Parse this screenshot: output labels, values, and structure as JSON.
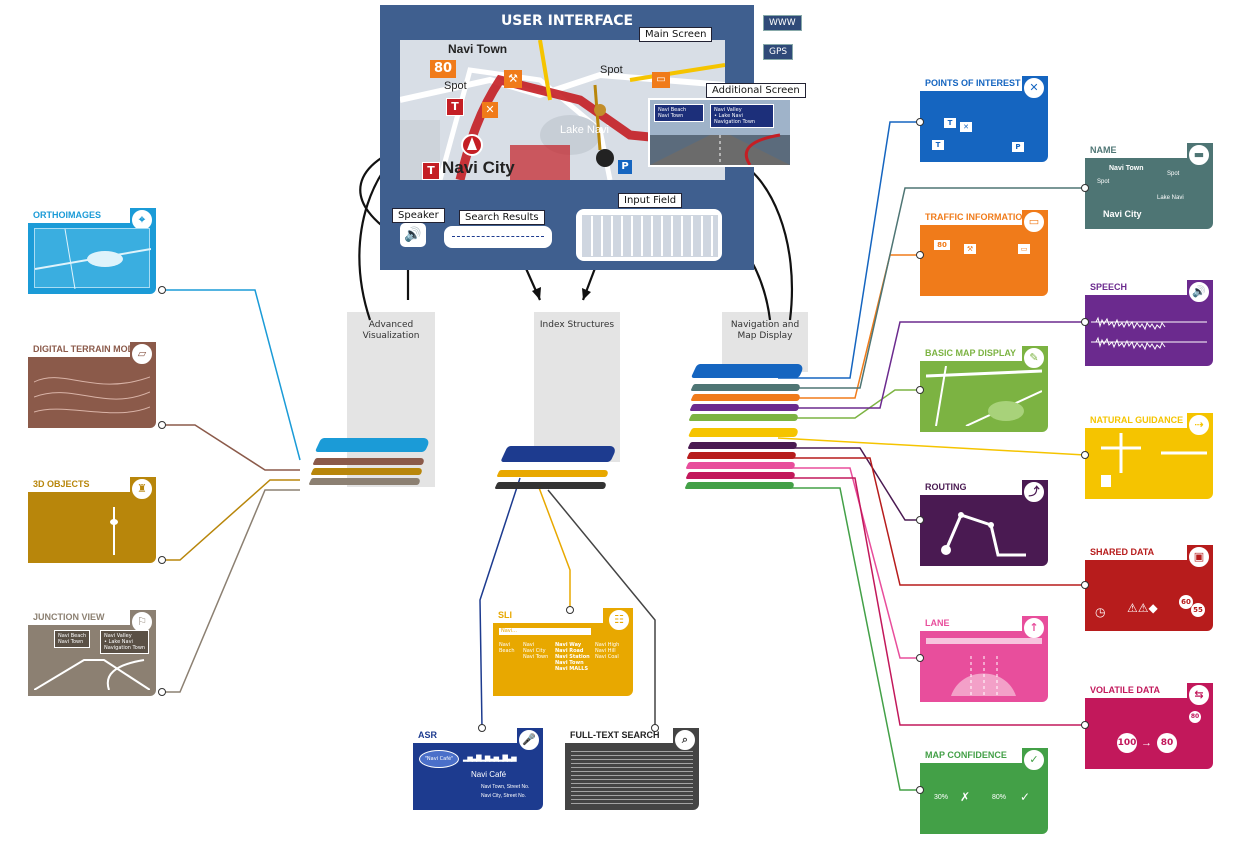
{
  "ui": {
    "title": "USER INTERFACE",
    "www": "WWW",
    "gps": "GPS",
    "main_screen": "Main Screen",
    "additional_screen": "Additional Screen",
    "speaker": "Speaker",
    "search_results": "Search Results",
    "input_field": "Input Field",
    "map": {
      "navi_town": "Navi Town",
      "speed_limit": "80",
      "spot_1": "Spot",
      "spot_2": "Spot",
      "lake": "Lake Navi",
      "city": "Navi City",
      "t_sign": "T",
      "t_sign_2": "T",
      "p_sign": "P"
    },
    "junction_signs": {
      "left_1": "Navi Beach",
      "left_2": "Navi Town",
      "right_1": "Navi Valley",
      "right_2": "• Lake Navi",
      "right_3": "Navigation Town"
    }
  },
  "columns": {
    "advanced": "Advanced Visualization",
    "index": "Index Structures",
    "navigation": "Navigation and Map Display"
  },
  "left_cards": [
    {
      "title": "ORTHOIMAGES",
      "color": "#1b9bd7",
      "icon": "satellite-icon"
    },
    {
      "title": "DIGITAL TERRAIN MODEL",
      "color": "#8b5a4a",
      "icon": "terrain-icon"
    },
    {
      "title": "3D OBJECTS",
      "color": "#b8860b",
      "icon": "tower-icon"
    },
    {
      "title": "JUNCTION VIEW",
      "color": "#8c8072",
      "icon": "junction-icon"
    }
  ],
  "junction_card": {
    "left_1": "Navi Beach",
    "left_2": "Navi Town",
    "right_1": "Navi Valley",
    "right_2": "• Lake Navi",
    "right_3": "Navigation Town"
  },
  "right_cards_a": [
    {
      "title": "POINTS OF INTEREST",
      "color": "#1565c0",
      "icon": "fork-knife-icon"
    },
    {
      "title": "TRAFFIC INFORMATION",
      "color": "#f07b1a",
      "icon": "car-icon"
    },
    {
      "title": "BASIC MAP DISPLAY",
      "color": "#7cb342",
      "icon": "map-icon"
    },
    {
      "title": "ROUTING",
      "color": "#4a1a52",
      "icon": "route-icon"
    },
    {
      "title": "LANE",
      "color": "#e84e9c",
      "icon": "lane-icon"
    },
    {
      "title": "MAP CONFIDENCE",
      "color": "#43a047",
      "icon": "check-icon"
    }
  ],
  "right_cards_b": [
    {
      "title": "NAME",
      "color": "#4e7574",
      "icon": "name-sign-icon"
    },
    {
      "title": "SPEECH",
      "color": "#6b2a8e",
      "icon": "speech-icon"
    },
    {
      "title": "NATURAL GUIDANCE",
      "color": "#f5c400",
      "icon": "guidance-icon"
    },
    {
      "title": "SHARED DATA",
      "color": "#b71c1c",
      "icon": "shared-icon"
    },
    {
      "title": "VOLATILE DATA",
      "color": "#c2185b",
      "icon": "volatile-icon"
    }
  ],
  "name_card": {
    "navi_town": "Navi Town",
    "spot_1": "Spot",
    "spot_2": "Spot",
    "lake": "Lake Navi",
    "city": "Navi City"
  },
  "traffic_card": {
    "speed": "80"
  },
  "shared_card": {
    "speed_1": "60",
    "speed_2": "55"
  },
  "volatile_card": {
    "from": "100",
    "to": "80",
    "small": "80"
  },
  "poi_card": {
    "t1": "T",
    "t2": "T",
    "p": "P"
  },
  "confidence_card": {
    "left": "30%",
    "right": "80%"
  },
  "bottom_cards": [
    {
      "title": "SLI",
      "color": "#e8a800",
      "icon": "sli-icon"
    },
    {
      "title": "ASR",
      "color": "#1d3b8f",
      "icon": "microphone-icon"
    },
    {
      "title": "FULL-TEXT SEARCH",
      "color": "#444444",
      "icon": "magnifier-icon"
    }
  ],
  "asr_card": {
    "bubble": "\"Navi Café\"",
    "result": "Navi Café",
    "street_1": "Navi Town, Street No.",
    "street_2": "Navi City, Street No."
  },
  "sli_card": {
    "input": "Navi...",
    "col_1": [
      "Navi",
      "Beach"
    ],
    "col_2": [
      "Navi",
      "Navi City",
      "Navi Town"
    ],
    "col_3": [
      "Navi Way",
      "Navi Road",
      "Navi Station",
      "Navi Town",
      "Navi MALLS"
    ],
    "col_4": [
      "Navi High",
      "Navi Hill",
      "Navi Coal"
    ]
  },
  "colors": {
    "panel": "#3f5f8f",
    "route": "#c41e24",
    "stack_left": [
      "#1b9bd7",
      "#8b5a4a",
      "#b8860b",
      "#8c8072"
    ],
    "stack_mid": [
      "#1d3b8f",
      "#e8a800",
      "#444444"
    ],
    "stack_right": [
      "#1565c0",
      "#4e7574",
      "#f07b1a",
      "#6b2a8e",
      "#7cb342",
      "#f5c400",
      "#4a1a52",
      "#b71c1c",
      "#e84e9c",
      "#c2185b",
      "#43a047"
    ]
  }
}
